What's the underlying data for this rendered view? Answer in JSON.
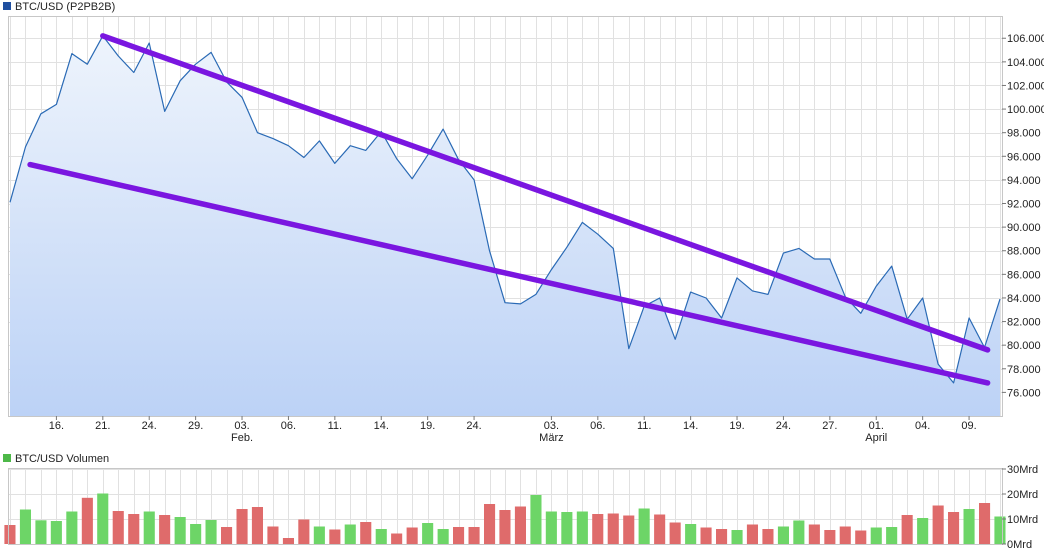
{
  "chart_data": [
    {
      "type": "area",
      "legend": "BTC/USD (P2PB2B)",
      "legend_color": "#1f4fa0",
      "line_color": "#2a6ab5",
      "fill_top": "#eef4fc",
      "fill_bottom": "#bcd2f6",
      "trend_color": "#7a16e0",
      "ylim": [
        74000,
        107800
      ],
      "y_tick_values": [
        76000,
        78000,
        80000,
        82000,
        84000,
        86000,
        88000,
        90000,
        92000,
        94000,
        96000,
        98000,
        100000,
        102000,
        104000,
        106000
      ],
      "y_tick_labels": [
        "76.000",
        "78.000",
        "80.000",
        "82.000",
        "84.000",
        "86.000",
        "88.000",
        "90.000",
        "92.000",
        "94.000",
        "96.000",
        "98.000",
        "100.000",
        "102.000",
        "104.000",
        "106.000"
      ],
      "x_day_ticks": [
        {
          "i": 3,
          "label": "16."
        },
        {
          "i": 6,
          "label": "21."
        },
        {
          "i": 9,
          "label": "24."
        },
        {
          "i": 12,
          "label": "29."
        },
        {
          "i": 15,
          "label": "03."
        },
        {
          "i": 18,
          "label": "06."
        },
        {
          "i": 21,
          "label": "11."
        },
        {
          "i": 24,
          "label": "14."
        },
        {
          "i": 27,
          "label": "19."
        },
        {
          "i": 30,
          "label": "24."
        },
        {
          "i": 35,
          "label": "03."
        },
        {
          "i": 38,
          "label": "06."
        },
        {
          "i": 41,
          "label": "11."
        },
        {
          "i": 44,
          "label": "14."
        },
        {
          "i": 47,
          "label": "19."
        },
        {
          "i": 50,
          "label": "24."
        },
        {
          "i": 53,
          "label": "27."
        },
        {
          "i": 56,
          "label": "01."
        },
        {
          "i": 59,
          "label": "04."
        },
        {
          "i": 62,
          "label": "09."
        }
      ],
      "x_month_ticks": [
        {
          "i": 15,
          "label": "Feb."
        },
        {
          "i": 35,
          "label": "März"
        },
        {
          "i": 56,
          "label": "April"
        }
      ],
      "values": [
        92100,
        96800,
        99600,
        100400,
        104700,
        103800,
        106200,
        104500,
        103100,
        105600,
        99800,
        102400,
        103800,
        104800,
        102300,
        101000,
        98000,
        97500,
        96900,
        95900,
        97300,
        95400,
        96900,
        96500,
        98100,
        95800,
        94100,
        96100,
        98300,
        95700,
        94000,
        88000,
        83600,
        83500,
        84300,
        86400,
        88300,
        90400,
        89400,
        88200,
        79700,
        83300,
        84000,
        80500,
        84500,
        84000,
        82300,
        85700,
        84600,
        84300,
        87800,
        88200,
        87300,
        87300,
        84100,
        82700,
        85000,
        86700,
        82200,
        84000,
        78400,
        76800,
        82300,
        79800,
        83900
      ],
      "trend_lines": [
        {
          "start": [
            6,
            106200
          ],
          "end": [
            63.2,
            79600
          ]
        },
        {
          "start": [
            1.3,
            95300
          ],
          "end": [
            63.2,
            76800
          ]
        }
      ]
    },
    {
      "type": "bar",
      "legend": "BTC/USD Volumen",
      "legend_color": "#4db848",
      "up_color": "#6dd567",
      "down_color": "#df6b6b",
      "ylim": [
        0,
        30
      ],
      "y_tick_values": [
        0,
        10,
        20,
        30
      ],
      "y_tick_labels": [
        "0Mrd",
        "10Mrd",
        "20Mrd",
        "30Mrd"
      ],
      "values": [
        7.6,
        13.8,
        9.5,
        9.2,
        13.0,
        18.5,
        20.2,
        13.2,
        12.0,
        13.0,
        11.6,
        10.8,
        8.0,
        9.6,
        6.8,
        14.0,
        14.8,
        7.0,
        2.4,
        9.8,
        7.0,
        5.8,
        7.8,
        8.8,
        6.0,
        4.2,
        6.6,
        8.4,
        6.0,
        6.8,
        6.8,
        16.0,
        13.6,
        15.0,
        19.6,
        13.0,
        12.8,
        13.0,
        12.0,
        12.2,
        11.4,
        14.2,
        11.8,
        8.6,
        8.0,
        6.6,
        6.0,
        5.6,
        7.8,
        6.0,
        7.0,
        9.4,
        7.8,
        5.6,
        7.0,
        5.4,
        6.6,
        6.8,
        11.6,
        10.4,
        15.4,
        12.8,
        14.0,
        16.4,
        11.0
      ],
      "up": [
        false,
        true,
        true,
        true,
        true,
        false,
        true,
        false,
        false,
        true,
        false,
        true,
        true,
        true,
        false,
        false,
        false,
        false,
        false,
        false,
        true,
        false,
        true,
        false,
        true,
        false,
        false,
        true,
        true,
        false,
        false,
        false,
        false,
        false,
        true,
        true,
        true,
        true,
        false,
        false,
        false,
        true,
        false,
        false,
        true,
        false,
        false,
        true,
        false,
        false,
        true,
        true,
        false,
        false,
        false,
        false,
        true,
        true,
        false,
        true,
        false,
        false,
        true,
        false,
        true
      ]
    }
  ]
}
